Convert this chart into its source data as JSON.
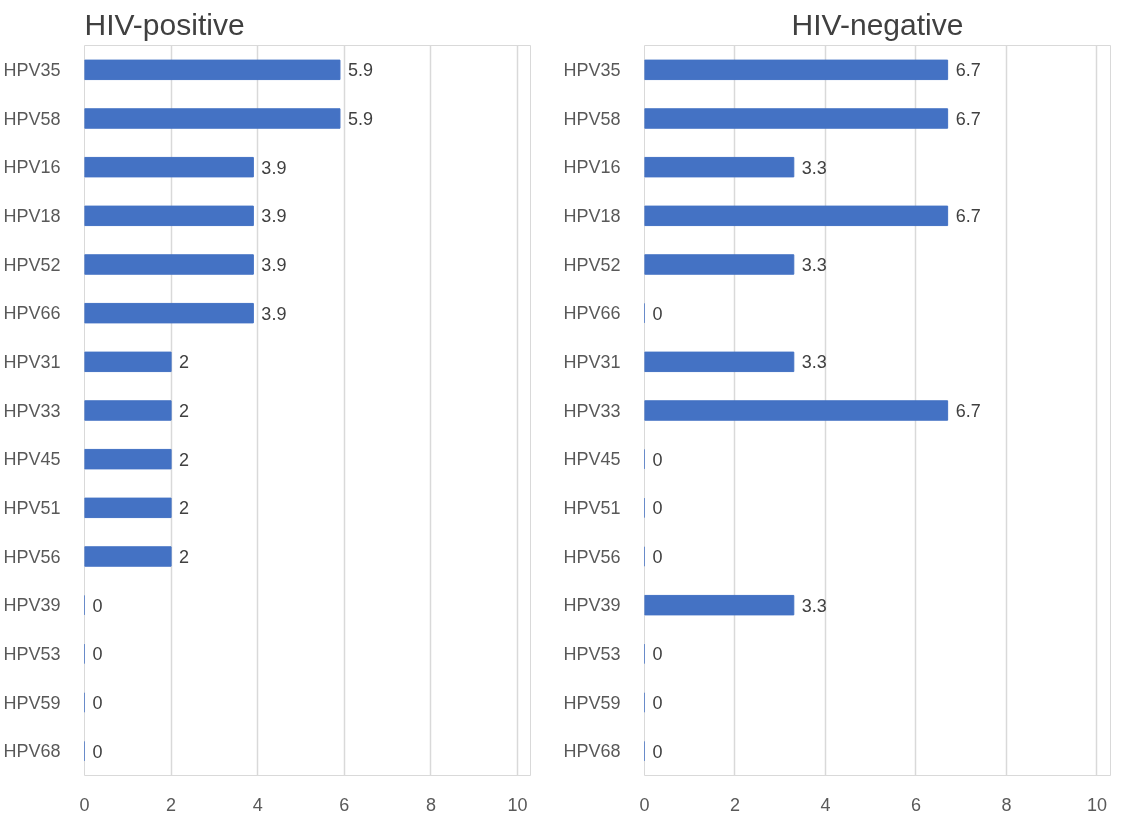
{
  "chart_data": [
    {
      "type": "bar",
      "orientation": "horizontal",
      "title": "HIV-positive",
      "categories": [
        "HPV35",
        "HPV58",
        "HPV16",
        "HPV18",
        "HPV52",
        "HPV66",
        "HPV31",
        "HPV33",
        "HPV45",
        "HPV51",
        "HPV56",
        "HPV39",
        "HPV53",
        "HPV59",
        "HPV68"
      ],
      "values": [
        5.9,
        5.9,
        3.9,
        3.9,
        3.9,
        3.9,
        2,
        2,
        2,
        2,
        2,
        0,
        0,
        0,
        0
      ],
      "color": "#4472c4",
      "xlim": [
        0,
        10
      ],
      "xticks": [
        0,
        2,
        4,
        6,
        8,
        10
      ],
      "grid": "x",
      "data_labels": true
    },
    {
      "type": "bar",
      "orientation": "horizontal",
      "title": "HIV-negative",
      "categories": [
        "HPV35",
        "HPV58",
        "HPV16",
        "HPV18",
        "HPV52",
        "HPV66",
        "HPV31",
        "HPV33",
        "HPV45",
        "HPV51",
        "HPV56",
        "HPV39",
        "HPV53",
        "HPV59",
        "HPV68"
      ],
      "values": [
        6.7,
        6.7,
        3.3,
        6.7,
        3.3,
        0,
        3.3,
        6.7,
        0,
        0,
        0,
        3.3,
        0,
        0,
        0
      ],
      "color": "#4472c4",
      "xlim": [
        0,
        10
      ],
      "xticks": [
        0,
        2,
        4,
        6,
        8,
        10
      ],
      "grid": "x",
      "data_labels": true
    }
  ]
}
